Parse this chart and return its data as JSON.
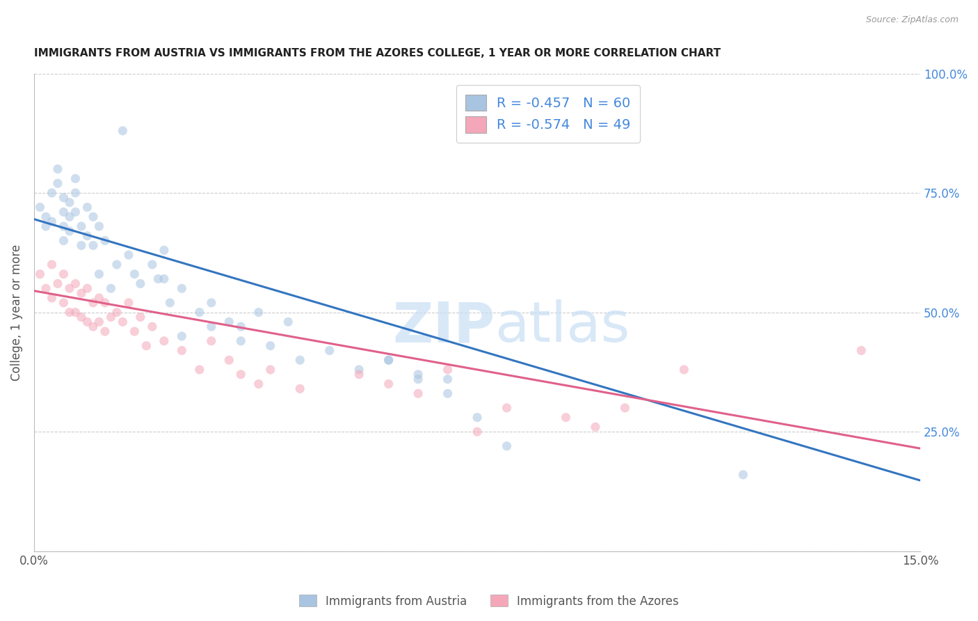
{
  "title": "IMMIGRANTS FROM AUSTRIA VS IMMIGRANTS FROM THE AZORES COLLEGE, 1 YEAR OR MORE CORRELATION CHART",
  "source": "Source: ZipAtlas.com",
  "ylabel_left": "College, 1 year or more",
  "legend_bottom": [
    "Immigrants from Austria",
    "Immigrants from the Azores"
  ],
  "austria_R": -0.457,
  "austria_N": 60,
  "azores_R": -0.574,
  "azores_N": 49,
  "xlim": [
    0.0,
    0.15
  ],
  "ylim": [
    0.0,
    1.0
  ],
  "austria_color": "#a8c4e0",
  "azores_color": "#f4a7b9",
  "austria_line_color": "#3375c0",
  "azores_line_color": "#e0608a",
  "background_color": "#ffffff",
  "grid_color": "#cccccc",
  "title_color": "#222222",
  "right_axis_color": "#4488dd",
  "austria_x": [
    0.001,
    0.002,
    0.002,
    0.003,
    0.003,
    0.004,
    0.004,
    0.005,
    0.005,
    0.005,
    0.005,
    0.006,
    0.006,
    0.006,
    0.007,
    0.007,
    0.007,
    0.008,
    0.008,
    0.009,
    0.009,
    0.01,
    0.01,
    0.011,
    0.011,
    0.012,
    0.013,
    0.014,
    0.015,
    0.016,
    0.017,
    0.018,
    0.02,
    0.021,
    0.022,
    0.023,
    0.025,
    0.028,
    0.03,
    0.033,
    0.035,
    0.038,
    0.04,
    0.043,
    0.045,
    0.05,
    0.055,
    0.06,
    0.065,
    0.07,
    0.022,
    0.025,
    0.03,
    0.035,
    0.06,
    0.065,
    0.07,
    0.075,
    0.08,
    0.12
  ],
  "austria_y": [
    0.72,
    0.7,
    0.68,
    0.75,
    0.69,
    0.8,
    0.77,
    0.74,
    0.71,
    0.68,
    0.65,
    0.73,
    0.7,
    0.67,
    0.78,
    0.75,
    0.71,
    0.68,
    0.64,
    0.72,
    0.66,
    0.7,
    0.64,
    0.68,
    0.58,
    0.65,
    0.55,
    0.6,
    0.88,
    0.62,
    0.58,
    0.56,
    0.6,
    0.57,
    0.63,
    0.52,
    0.55,
    0.5,
    0.52,
    0.48,
    0.47,
    0.5,
    0.43,
    0.48,
    0.4,
    0.42,
    0.38,
    0.4,
    0.37,
    0.36,
    0.57,
    0.45,
    0.47,
    0.44,
    0.4,
    0.36,
    0.33,
    0.28,
    0.22,
    0.16
  ],
  "azores_x": [
    0.001,
    0.002,
    0.003,
    0.003,
    0.004,
    0.005,
    0.005,
    0.006,
    0.006,
    0.007,
    0.007,
    0.008,
    0.008,
    0.009,
    0.009,
    0.01,
    0.01,
    0.011,
    0.011,
    0.012,
    0.012,
    0.013,
    0.014,
    0.015,
    0.016,
    0.017,
    0.018,
    0.019,
    0.02,
    0.022,
    0.025,
    0.028,
    0.03,
    0.033,
    0.035,
    0.038,
    0.04,
    0.045,
    0.055,
    0.06,
    0.065,
    0.07,
    0.075,
    0.08,
    0.09,
    0.095,
    0.1,
    0.11,
    0.14
  ],
  "azores_y": [
    0.58,
    0.55,
    0.6,
    0.53,
    0.56,
    0.58,
    0.52,
    0.55,
    0.5,
    0.56,
    0.5,
    0.54,
    0.49,
    0.55,
    0.48,
    0.52,
    0.47,
    0.53,
    0.48,
    0.52,
    0.46,
    0.49,
    0.5,
    0.48,
    0.52,
    0.46,
    0.49,
    0.43,
    0.47,
    0.44,
    0.42,
    0.38,
    0.44,
    0.4,
    0.37,
    0.35,
    0.38,
    0.34,
    0.37,
    0.35,
    0.33,
    0.38,
    0.25,
    0.3,
    0.28,
    0.26,
    0.3,
    0.38,
    0.42
  ],
  "austria_line_x0": 0.0,
  "austria_line_y0": 0.695,
  "austria_line_x1": 0.15,
  "austria_line_y1": 0.148,
  "azores_line_x0": 0.0,
  "azores_line_y0": 0.545,
  "azores_line_x1": 0.15,
  "azores_line_y1": 0.215,
  "watermark_zip": "ZIP",
  "watermark_atlas": "atlas",
  "marker_size": 90,
  "marker_alpha": 0.55,
  "line_width": 2.2
}
